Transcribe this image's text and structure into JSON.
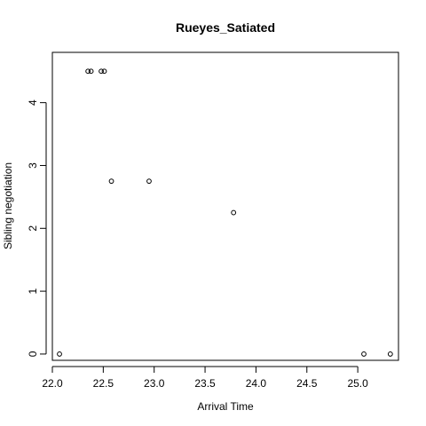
{
  "chart_data": {
    "type": "scatter",
    "title": "Rueyes_Satiated",
    "xlabel": "Arrival Time",
    "ylabel": "Sibling negotiation",
    "xlim": [
      22.0,
      25.4
    ],
    "ylim": [
      -0.1,
      4.8
    ],
    "xticks": [
      "22.0",
      "22.5",
      "23.0",
      "23.5",
      "24.0",
      "24.5",
      "25.0"
    ],
    "yticks": [
      "0",
      "1",
      "2",
      "3",
      "4"
    ],
    "grid": false,
    "points": [
      {
        "x": 22.07,
        "y": 0
      },
      {
        "x": 22.35,
        "y": 4.5
      },
      {
        "x": 22.38,
        "y": 4.5
      },
      {
        "x": 22.48,
        "y": 4.5
      },
      {
        "x": 22.51,
        "y": 4.5
      },
      {
        "x": 22.58,
        "y": 2.75
      },
      {
        "x": 22.95,
        "y": 2.75
      },
      {
        "x": 23.78,
        "y": 2.25
      },
      {
        "x": 25.06,
        "y": 0
      },
      {
        "x": 25.32,
        "y": 0
      }
    ]
  }
}
